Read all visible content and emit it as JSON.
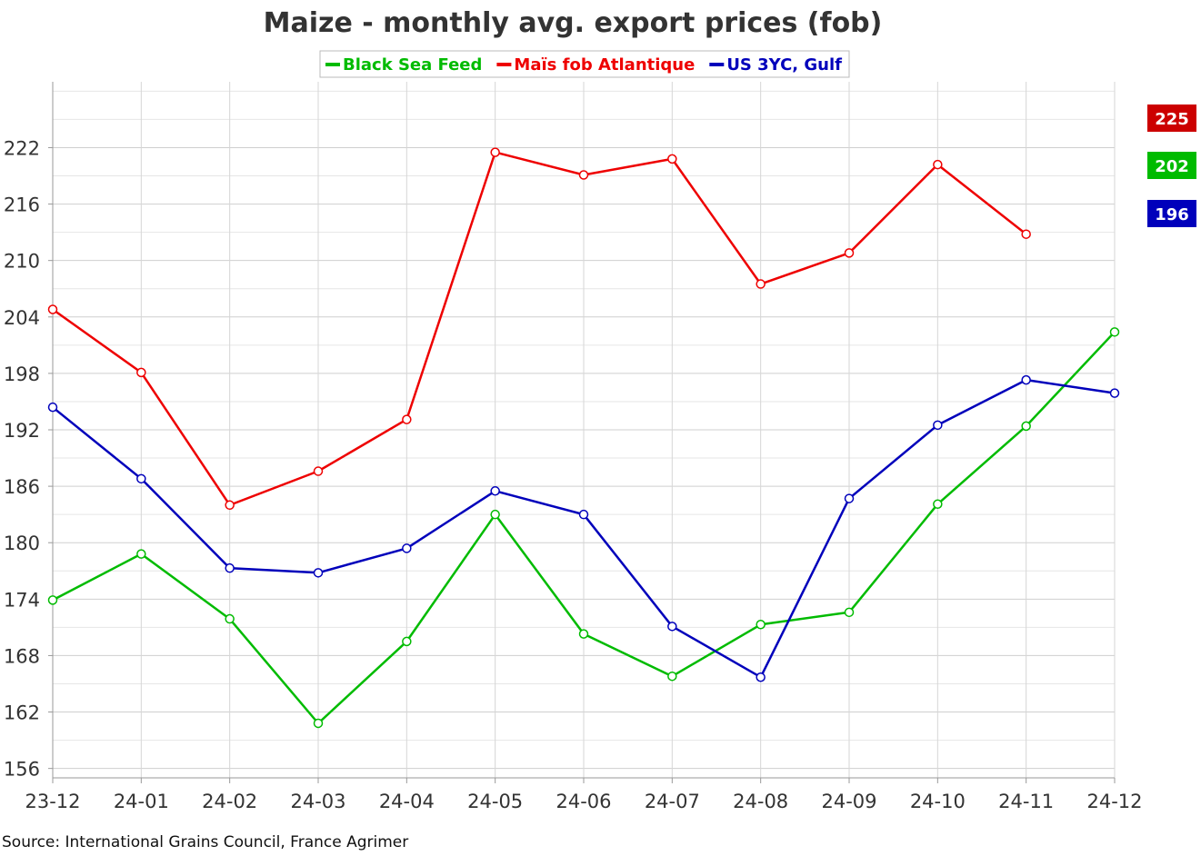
{
  "chart_data": {
    "type": "line",
    "title": "Maize - monthly avg. export prices (fob)",
    "xlabel": "",
    "ylabel": "",
    "categories": [
      "23-12",
      "24-01",
      "24-02",
      "24-03",
      "24-04",
      "24-05",
      "24-06",
      "24-07",
      "24-08",
      "24-09",
      "24-10",
      "24-11",
      "24-12"
    ],
    "ylim": [
      155,
      229
    ],
    "yticks": [
      156,
      162,
      168,
      174,
      180,
      186,
      192,
      198,
      204,
      210,
      216,
      222
    ],
    "ytick_labels": [
      "156",
      "162",
      "168",
      "174",
      "180",
      "186",
      "192",
      "198",
      "204",
      "210",
      "216",
      "222"
    ],
    "grid": true,
    "legend_position": "top-center",
    "series": [
      {
        "name": "Black Sea Feed",
        "color": "#00bb00",
        "values": [
          173.9,
          178.8,
          171.9,
          160.8,
          169.5,
          183.0,
          170.3,
          165.8,
          171.3,
          172.6,
          184.1,
          192.4,
          202.4
        ]
      },
      {
        "name": "Maïs fob Atlantique",
        "color": "#ee0000",
        "values": [
          204.8,
          198.1,
          184.0,
          187.6,
          193.1,
          221.5,
          219.1,
          220.8,
          207.5,
          210.8,
          220.2,
          212.8,
          null
        ]
      },
      {
        "name": "US 3YC, Gulf",
        "color": "#0000bb",
        "values": [
          194.4,
          186.8,
          177.3,
          176.8,
          179.4,
          185.5,
          183.0,
          171.1,
          165.7,
          184.7,
          192.5,
          197.3,
          195.9
        ]
      }
    ],
    "badges": [
      {
        "label": "225",
        "color": "#cc0000"
      },
      {
        "label": "202",
        "color": "#00bb00"
      },
      {
        "label": "196",
        "color": "#0000bb"
      }
    ],
    "source": "Source: International Grains Council, France Agrimer"
  }
}
